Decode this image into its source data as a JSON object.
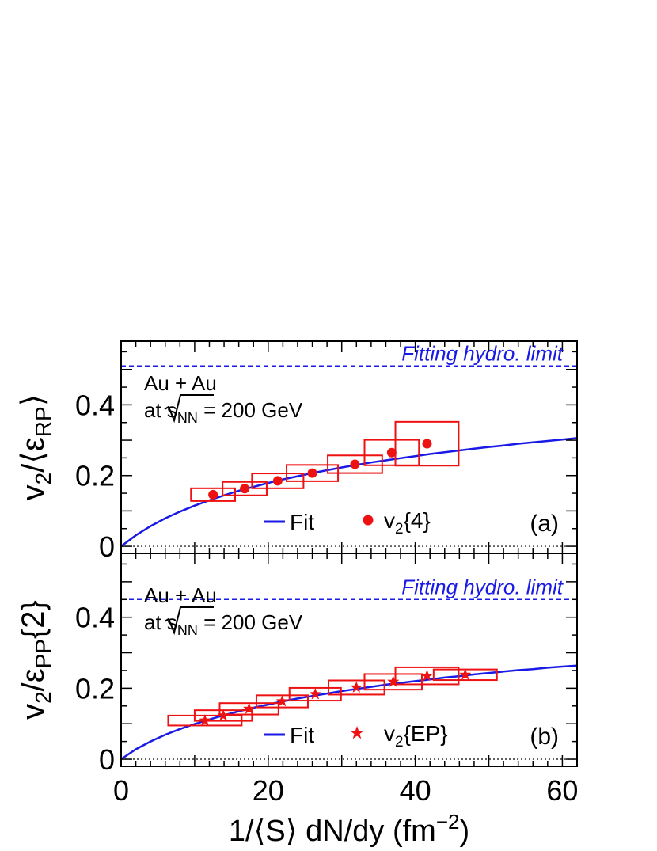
{
  "figure": {
    "x_axis_label": "1/⟨S⟩ dN/dy (fm",
    "x_axis_label_sup": "−2",
    "x_axis_label_end": ")"
  },
  "chart_data": [
    {
      "type": "scatter",
      "panel_tag": "(a)",
      "ylabel": "v₂/⟨ε_RP⟩",
      "ylabel_parts": {
        "a": "v",
        "b": "2",
        "c": "/⟨ε",
        "d": "RP",
        "e": "⟩"
      },
      "xlim": [
        0,
        62
      ],
      "ylim": [
        -0.02,
        0.58
      ],
      "yticks": [
        0,
        0.2,
        0.4
      ],
      "ytick_labels": [
        "0",
        "0.2",
        "0.4"
      ],
      "hydro_limit": {
        "y": 0.51,
        "label": "Fitting hydro. limit",
        "color": "#1a1ae6"
      },
      "annotation": {
        "line1": "Au + Au",
        "pre": "at ",
        "s": "s",
        "sub": "NN",
        "post": " = 200 GeV"
      },
      "legend": {
        "fit_label": "Fit",
        "data_label_main": "v",
        "data_label_sub": "2",
        "data_label_rest": "{4}",
        "marker": "circle"
      },
      "fit": {
        "color": "#1a1ae6",
        "x": [
          0,
          2,
          4,
          6,
          8,
          10,
          12,
          14,
          16,
          18,
          20,
          22,
          24,
          26,
          28,
          30,
          32,
          34,
          36,
          38,
          40,
          42,
          44,
          46,
          48,
          50,
          52,
          54,
          56,
          58,
          60,
          62
        ],
        "y": [
          0.0,
          0.031,
          0.057,
          0.079,
          0.098,
          0.115,
          0.13,
          0.144,
          0.157,
          0.168,
          0.179,
          0.189,
          0.198,
          0.207,
          0.215,
          0.223,
          0.23,
          0.237,
          0.243,
          0.249,
          0.255,
          0.261,
          0.266,
          0.271,
          0.276,
          0.281,
          0.285,
          0.29,
          0.294,
          0.298,
          0.302,
          0.306
        ]
      },
      "points": [
        {
          "x": 12.5,
          "y": 0.146,
          "xerr": 3.0,
          "yerr": 0.018
        },
        {
          "x": 16.8,
          "y": 0.163,
          "xerr": 3.0,
          "yerr": 0.019
        },
        {
          "x": 21.3,
          "y": 0.185,
          "xerr": 3.5,
          "yerr": 0.021
        },
        {
          "x": 26.0,
          "y": 0.207,
          "xerr": 3.5,
          "yerr": 0.023
        },
        {
          "x": 31.8,
          "y": 0.232,
          "xerr": 3.7,
          "yerr": 0.025
        },
        {
          "x": 36.8,
          "y": 0.265,
          "xerr": 3.7,
          "yerr": 0.036
        },
        {
          "x": 41.6,
          "y": 0.29,
          "xerr": 4.3,
          "yerr": 0.062
        }
      ],
      "series_color": "#ee1111"
    },
    {
      "type": "scatter",
      "panel_tag": "(b)",
      "ylabel": "v₂/ε_PP{2}",
      "ylabel_parts": {
        "a": "v",
        "b": "2",
        "c": "/ε",
        "d": "PP",
        "e": "{2}"
      },
      "xlim": [
        0,
        62
      ],
      "xticks": [
        0,
        20,
        40,
        60
      ],
      "xtick_labels": [
        "0",
        "20",
        "40",
        "60"
      ],
      "ylim": [
        -0.02,
        0.58
      ],
      "yticks": [
        0,
        0.2,
        0.4
      ],
      "ytick_labels": [
        "0",
        "0.2",
        "0.4"
      ],
      "hydro_limit": {
        "y": 0.45,
        "label": "Fitting hydro. limit",
        "color": "#1a1ae6"
      },
      "annotation": {
        "line1": "Au + Au",
        "pre": "at ",
        "s": "s",
        "sub": "NN",
        "post": " = 200 GeV"
      },
      "legend": {
        "fit_label": "Fit",
        "data_label_main": "v",
        "data_label_sub": "2",
        "data_label_rest": "{EP}",
        "marker": "star"
      },
      "fit": {
        "color": "#1a1ae6",
        "x": [
          0,
          2,
          4,
          6,
          8,
          10,
          12,
          14,
          16,
          18,
          20,
          22,
          24,
          26,
          28,
          30,
          32,
          34,
          36,
          38,
          40,
          42,
          44,
          46,
          48,
          50,
          52,
          54,
          56,
          58,
          60,
          62
        ],
        "y": [
          0.0,
          0.028,
          0.05,
          0.069,
          0.085,
          0.099,
          0.112,
          0.124,
          0.135,
          0.145,
          0.154,
          0.163,
          0.171,
          0.178,
          0.185,
          0.192,
          0.198,
          0.204,
          0.21,
          0.215,
          0.22,
          0.225,
          0.23,
          0.234,
          0.239,
          0.243,
          0.247,
          0.251,
          0.254,
          0.258,
          0.261,
          0.264
        ]
      },
      "points": [
        {
          "x": 11.4,
          "y": 0.109,
          "xerr": 5.0,
          "yerr": 0.014
        },
        {
          "x": 13.9,
          "y": 0.123,
          "xerr": 3.9,
          "yerr": 0.015
        },
        {
          "x": 17.4,
          "y": 0.142,
          "xerr": 4.0,
          "yerr": 0.016
        },
        {
          "x": 21.9,
          "y": 0.163,
          "xerr": 3.5,
          "yerr": 0.017
        },
        {
          "x": 26.4,
          "y": 0.183,
          "xerr": 3.5,
          "yerr": 0.018
        },
        {
          "x": 32.0,
          "y": 0.202,
          "xerr": 3.8,
          "yerr": 0.02
        },
        {
          "x": 37.0,
          "y": 0.218,
          "xerr": 3.9,
          "yerr": 0.022
        },
        {
          "x": 41.6,
          "y": 0.235,
          "xerr": 4.3,
          "yerr": 0.024
        },
        {
          "x": 46.8,
          "y": 0.238,
          "xerr": 4.3,
          "yerr": 0.015
        }
      ],
      "series_color": "#ee1111"
    }
  ]
}
